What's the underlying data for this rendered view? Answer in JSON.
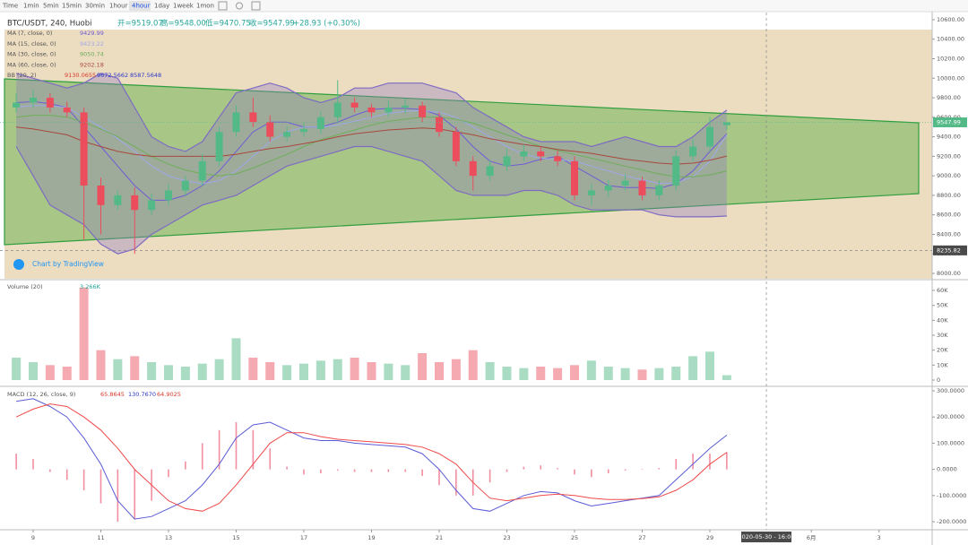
{
  "toolbar": {
    "intervals": [
      "Time",
      "1min",
      "5min",
      "15min",
      "30min",
      "1hour",
      "4hour",
      "1day",
      "1week",
      "1mon"
    ],
    "active": 6
  },
  "branding": "Chart by TradingView",
  "chart_data": [
    {
      "type": "candlestick",
      "title": "BTC/USDT, 240, Huobi",
      "ohlc_labels": [
        "开=9519.07",
        "高=9548.00",
        "低=9470.75",
        "收=9547.99"
      ],
      "change": "+28.93 (+0.30%)",
      "x": [
        8.5,
        9,
        9.5,
        10,
        10.5,
        11,
        11.5,
        12,
        12.5,
        13,
        13.5,
        14,
        14.5,
        15,
        15.5,
        16,
        16.5,
        17,
        17.5,
        18,
        18.5,
        19,
        19.5,
        20,
        20.5,
        21,
        21.5,
        22,
        22.5,
        23,
        23.5,
        24,
        24.5,
        25,
        25.5,
        26,
        26.5,
        27,
        27.5,
        28,
        28.5,
        29,
        29.5
      ],
      "open": [
        9700,
        9750,
        9800,
        9700,
        9650,
        8900,
        8700,
        8800,
        8650,
        8750,
        8850,
        8950,
        9150,
        9450,
        9650,
        9550,
        9400,
        9450,
        9480,
        9600,
        9750,
        9700,
        9650,
        9700,
        9720,
        9600,
        9450,
        9150,
        9000,
        9100,
        9200,
        9250,
        9200,
        9150,
        8800,
        8850,
        8900,
        8950,
        8800,
        8900,
        9200,
        9300,
        9519.07
      ],
      "high": [
        9850,
        9880,
        9850,
        9760,
        9700,
        8980,
        8850,
        8880,
        8820,
        8920,
        9000,
        9220,
        9500,
        9720,
        9800,
        9620,
        9500,
        9540,
        9660,
        9980,
        9800,
        9740,
        9770,
        9790,
        9760,
        9650,
        9500,
        9200,
        9160,
        9280,
        9320,
        9300,
        9260,
        9200,
        8920,
        8960,
        9010,
        8990,
        8950,
        9260,
        9380,
        9600,
        9548.0
      ],
      "low": [
        9650,
        9700,
        9650,
        9600,
        8350,
        8400,
        8650,
        8200,
        8600,
        8700,
        8800,
        8900,
        9100,
        9400,
        9500,
        9350,
        9350,
        9400,
        9430,
        9550,
        9650,
        9600,
        9600,
        9640,
        9550,
        9400,
        9100,
        8850,
        8950,
        9050,
        9150,
        9150,
        9100,
        8750,
        8700,
        8780,
        8850,
        8750,
        8750,
        8850,
        9150,
        9250,
        9470.75
      ],
      "close": [
        9750,
        9800,
        9700,
        9650,
        8900,
        8700,
        8800,
        8650,
        8750,
        8850,
        8950,
        9150,
        9450,
        9650,
        9550,
        9400,
        9450,
        9480,
        9600,
        9750,
        9700,
        9650,
        9700,
        9720,
        9600,
        9450,
        9150,
        9000,
        9100,
        9200,
        9250,
        9200,
        9150,
        8800,
        8850,
        8900,
        8950,
        8800,
        8900,
        9200,
        9300,
        9500,
        9547.99
      ],
      "up_color": "#53b987",
      "down_color": "#eb4d5c",
      "series": [
        {
          "name": "MA (7, close, 0)",
          "color": "#6f5bd6",
          "last_label": "9429.99",
          "values": [
            9750,
            9760,
            9740,
            9700,
            9500,
            9300,
            9100,
            8900,
            8750,
            8750,
            8800,
            8900,
            9050,
            9250,
            9450,
            9550,
            9550,
            9500,
            9500,
            9550,
            9620,
            9680,
            9690,
            9690,
            9680,
            9620,
            9480,
            9300,
            9150,
            9100,
            9120,
            9170,
            9200,
            9100,
            9000,
            8900,
            8880,
            8880,
            8870,
            8920,
            9050,
            9250,
            9429.99
          ]
        },
        {
          "name": "MA (15, close, 0)",
          "color": "#9fa8e8",
          "last_label": "9423.22",
          "values": [
            9700,
            9720,
            9720,
            9700,
            9600,
            9500,
            9380,
            9250,
            9100,
            9000,
            8950,
            8920,
            8950,
            9050,
            9200,
            9350,
            9450,
            9500,
            9500,
            9520,
            9560,
            9600,
            9640,
            9660,
            9670,
            9650,
            9600,
            9500,
            9400,
            9300,
            9220,
            9180,
            9170,
            9150,
            9100,
            9050,
            9000,
            8960,
            8920,
            8930,
            8990,
            9150,
            9423.22
          ]
        },
        {
          "name": "MA (30, close, 0)",
          "color": "#6fae5b",
          "last_label": "9050.74",
          "values": [
            9600,
            9620,
            9620,
            9600,
            9550,
            9480,
            9400,
            9300,
            9200,
            9120,
            9060,
            9020,
            9000,
            9020,
            9080,
            9150,
            9220,
            9300,
            9370,
            9420,
            9470,
            9520,
            9560,
            9580,
            9600,
            9600,
            9580,
            9540,
            9480,
            9420,
            9360,
            9300,
            9260,
            9220,
            9180,
            9140,
            9100,
            9060,
            9020,
            8990,
            8990,
            9010,
            9050.74
          ]
        },
        {
          "name": "MA (60, close, 0)",
          "color": "#a8483c",
          "last_label": "9202.18",
          "values": [
            9500,
            9480,
            9450,
            9420,
            9350,
            9300,
            9250,
            9220,
            9200,
            9200,
            9200,
            9200,
            9200,
            9220,
            9250,
            9280,
            9300,
            9330,
            9360,
            9400,
            9430,
            9450,
            9470,
            9480,
            9490,
            9480,
            9450,
            9420,
            9380,
            9350,
            9320,
            9300,
            9270,
            9250,
            9230,
            9200,
            9170,
            9150,
            9130,
            9120,
            9130,
            9160,
            9202.18
          ]
        }
      ],
      "bands": {
        "name": "BB (20, 2)",
        "color": "#7e6bc4",
        "labels": [
          "9130.0655",
          "9672.5662",
          "8587.5648"
        ],
        "upper": [
          10050,
          10000,
          9950,
          9900,
          9950,
          10050,
          10000,
          9700,
          9400,
          9300,
          9250,
          9350,
          9600,
          9850,
          9900,
          9950,
          9900,
          9800,
          9750,
          9800,
          9900,
          9900,
          9950,
          9950,
          9950,
          9900,
          9850,
          9700,
          9600,
          9500,
          9400,
          9350,
          9350,
          9350,
          9300,
          9350,
          9400,
          9350,
          9300,
          9300,
          9400,
          9550,
          9672.5662
        ],
        "lower": [
          9300,
          9000,
          8700,
          8600,
          8500,
          8300,
          8200,
          8250,
          8400,
          8500,
          8600,
          8700,
          8750,
          8800,
          8900,
          9000,
          9100,
          9150,
          9200,
          9250,
          9300,
          9300,
          9250,
          9200,
          9150,
          9000,
          8850,
          8800,
          8800,
          8800,
          8850,
          8850,
          8800,
          8700,
          8650,
          8650,
          8650,
          8650,
          8600,
          8580,
          8580,
          8580,
          8587.5648
        ]
      },
      "crosshair": {
        "x": 30.67,
        "label": "2020-05-30 - 16:00",
        "price": 8235.82
      },
      "xlim": [
        8.02,
        35.57
      ],
      "ylim": [
        7945,
        10673
      ],
      "yticks": [
        {
          "value": 8000,
          "label": "8000.00"
        },
        {
          "value": 8200,
          "label": "8200.00"
        },
        {
          "value": 8400,
          "label": "8400.00"
        },
        {
          "value": 8600,
          "label": "8600.00"
        },
        {
          "value": 8800,
          "label": "8800.00"
        },
        {
          "value": 9000,
          "label": "9000.00"
        },
        {
          "value": 9200,
          "label": "9200.00"
        },
        {
          "value": 9400,
          "label": "9400.00"
        },
        {
          "value": 9600,
          "label": "9600.00"
        },
        {
          "value": 9800,
          "label": "9800.00"
        },
        {
          "value": 10000,
          "label": "10000.00"
        },
        {
          "value": 10200,
          "label": "10200.00"
        },
        {
          "value": 10400,
          "label": "10400.00"
        },
        {
          "value": 10600,
          "label": "10600.00"
        }
      ]
    },
    {
      "type": "bar",
      "title": "Volume (20)",
      "last_label": "3.266K",
      "x": [
        8.5,
        9,
        9.5,
        10,
        10.5,
        11,
        11.5,
        12,
        12.5,
        13,
        13.5,
        14,
        14.5,
        15,
        15.5,
        16,
        16.5,
        17,
        17.5,
        18,
        18.5,
        19,
        19.5,
        20,
        20.5,
        21,
        21.5,
        22,
        22.5,
        23,
        23.5,
        24,
        24.5,
        25,
        25.5,
        26,
        26.5,
        27,
        27.5,
        28,
        28.5,
        29,
        29.5
      ],
      "values": [
        15000,
        12000,
        10000,
        9000,
        62000,
        20000,
        14000,
        16000,
        12000,
        10000,
        9000,
        11000,
        14000,
        28000,
        15000,
        12000,
        10000,
        11000,
        13000,
        14000,
        15000,
        12000,
        11000,
        10000,
        18000,
        12000,
        14000,
        20000,
        12000,
        9000,
        8000,
        9000,
        8000,
        10000,
        13000,
        9000,
        8000,
        7000,
        8000,
        9000,
        16000,
        19000,
        3266
      ],
      "up_color": "#a9dcc3",
      "down_color": "#f5a9b0",
      "xlim": [
        8.02,
        35.57
      ],
      "ylim": [
        -3600,
        66600
      ],
      "yticks": [
        0,
        {
          "value": 10000,
          "label": "10K"
        },
        {
          "value": 20000,
          "label": "20K"
        },
        {
          "value": 30000,
          "label": "30K"
        },
        {
          "value": 40000,
          "label": "40K"
        },
        {
          "value": 50000,
          "label": "50K"
        },
        {
          "value": 60000,
          "label": "60K"
        }
      ]
    },
    {
      "type": "line",
      "title": "MACD (12, 26, close, 9)",
      "x": [
        8.5,
        9,
        9.5,
        10,
        10.5,
        11,
        11.5,
        12,
        12.5,
        13,
        13.5,
        14,
        14.5,
        15,
        15.5,
        16,
        16.5,
        17,
        17.5,
        18,
        18.5,
        19,
        19.5,
        20,
        20.5,
        21,
        21.5,
        22,
        22.5,
        23,
        23.5,
        24,
        24.5,
        25,
        25.5,
        26,
        26.5,
        27,
        27.5,
        28,
        28.5,
        29,
        29.5
      ],
      "histogram": {
        "color": "#f28ea0",
        "last_label": "65.8645",
        "values": [
          60,
          40,
          -10,
          -40,
          -80,
          -130,
          -200,
          -190,
          -120,
          -30,
          30,
          100,
          150,
          180,
          150,
          80,
          10,
          -20,
          -15,
          -5,
          -10,
          -10,
          -10,
          -10,
          -25,
          -60,
          -100,
          -100,
          -50,
          -10,
          10,
          15,
          5,
          -20,
          -30,
          -15,
          -5,
          2,
          5,
          40,
          60,
          60,
          65.8645
        ]
      },
      "series": [
        {
          "color": "#5b5bd6",
          "last_label": "130.7670",
          "values": [
            260,
            270,
            240,
            200,
            120,
            20,
            -120,
            -190,
            -180,
            -150,
            -120,
            -60,
            20,
            120,
            170,
            180,
            150,
            120,
            110,
            110,
            100,
            95,
            90,
            85,
            60,
            0,
            -80,
            -150,
            -160,
            -130,
            -100,
            -85,
            -90,
            -120,
            -140,
            -130,
            -120,
            -110,
            -100,
            -40,
            20,
            80,
            130.767
          ]
        },
        {
          "color": "#ef4a4a",
          "last_label": "64.9025",
          "values": [
            200,
            230,
            250,
            240,
            200,
            150,
            80,
            0,
            -60,
            -120,
            -150,
            -160,
            -130,
            -60,
            20,
            100,
            140,
            140,
            125,
            115,
            110,
            105,
            100,
            95,
            85,
            60,
            20,
            -50,
            -110,
            -120,
            -110,
            -100,
            -95,
            -100,
            -110,
            -115,
            -115,
            -112,
            -105,
            -80,
            -40,
            20,
            64.9025
          ]
        }
      ],
      "xlim": [
        8.02,
        35.57
      ],
      "ylim": [
        -227.4,
        313.7
      ],
      "yticks": [
        {
          "value": 300,
          "label": "300.0000"
        },
        {
          "value": 200,
          "label": "200.0000"
        },
        {
          "value": 100,
          "label": "100.0000"
        },
        {
          "value": 0,
          "label": "0.0000"
        },
        {
          "value": -100,
          "label": "-100.0000"
        },
        {
          "value": -200,
          "label": "-200.0000"
        }
      ],
      "xticks": [
        9,
        11,
        13,
        15,
        17,
        19,
        21,
        23,
        25,
        27,
        29,
        {
          "value": 32,
          "label": "6月"
        },
        {
          "value": 34,
          "label": "3"
        }
      ]
    }
  ]
}
